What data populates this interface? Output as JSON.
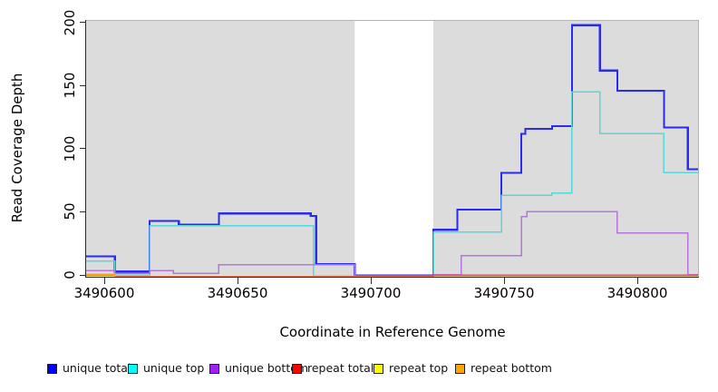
{
  "chart_data": {
    "type": "step-line",
    "title": "",
    "xlabel": "Coordinate in Reference Genome",
    "ylabel": "Read Coverage Depth",
    "x_ticks": [
      "3490600",
      "3490650",
      "3490700",
      "3490750",
      "3490800"
    ],
    "x_tick_values": [
      3490600,
      3490650,
      3490700,
      3490750,
      3490800
    ],
    "y_ticks": [
      "0",
      "50",
      "100",
      "150",
      "200"
    ],
    "y_tick_values": [
      0,
      50,
      100,
      150,
      200
    ],
    "xlim": [
      3490593.2,
      3490822.8
    ],
    "ylim": [
      0,
      203
    ],
    "grid": false,
    "legend_position": "bottom",
    "plot_bg": "#dcdcdc",
    "gap_region": {
      "from": 3490694,
      "to": 3490723.5,
      "fill": "#ffffff"
    },
    "series": [
      {
        "label": "unique total",
        "swatch": "#0000ff",
        "stroke": "#2a2af0",
        "points": [
          [
            3490593,
            15
          ],
          [
            3490604,
            3
          ],
          [
            3490617,
            43
          ],
          [
            3490628,
            40
          ],
          [
            3490643,
            49
          ],
          [
            3490677.5,
            47
          ],
          [
            3490679.5,
            9
          ],
          [
            3490694,
            0
          ],
          [
            3490723.5,
            36
          ],
          [
            3490732.5,
            52
          ],
          [
            3490749,
            81
          ],
          [
            3490756.5,
            112
          ],
          [
            3490758,
            116
          ],
          [
            3490768,
            118
          ],
          [
            3490775.5,
            198
          ],
          [
            3490786,
            162
          ],
          [
            3490792.5,
            146
          ],
          [
            3490810,
            117
          ],
          [
            3490819,
            84
          ],
          [
            3490823,
            84
          ]
        ]
      },
      {
        "label": "unique top",
        "swatch": "#00ffff",
        "stroke": "#58d6da",
        "points": [
          [
            3490593,
            12
          ],
          [
            3490604,
            1
          ],
          [
            3490617,
            40
          ],
          [
            3490678.5,
            0
          ],
          [
            3490723.5,
            35
          ],
          [
            3490749,
            64
          ],
          [
            3490768,
            66
          ],
          [
            3490775.5,
            146
          ],
          [
            3490786,
            113
          ],
          [
            3490810,
            82
          ],
          [
            3490823,
            82
          ]
        ]
      },
      {
        "label": "unique bottom",
        "swatch": "#a020f0",
        "stroke": "#b476dc",
        "points": [
          [
            3490593,
            4
          ],
          [
            3490604,
            2
          ],
          [
            3490617,
            4
          ],
          [
            3490626,
            2
          ],
          [
            3490643,
            9
          ],
          [
            3490694,
            0
          ],
          [
            3490723.5,
            1
          ],
          [
            3490734,
            16
          ],
          [
            3490756.5,
            47
          ],
          [
            3490758.5,
            51
          ],
          [
            3490792.5,
            34
          ],
          [
            3490819,
            1
          ],
          [
            3490823,
            1
          ]
        ]
      },
      {
        "label": "repeat total",
        "swatch": "#ff0000",
        "stroke": "#e0486e",
        "points": [
          [
            3490593,
            1
          ],
          [
            3490604,
            0
          ],
          [
            3490723.5,
            1
          ],
          [
            3490823,
            1
          ]
        ]
      },
      {
        "label": "repeat top",
        "swatch": "#ffff00",
        "stroke": "#ffee33",
        "points": [
          [
            3490593,
            0
          ],
          [
            3490823,
            0
          ]
        ]
      },
      {
        "label": "repeat bottom",
        "swatch": "#ffa500",
        "stroke": "#ffa520",
        "points": [
          [
            3490593,
            2
          ],
          [
            3490604,
            0
          ],
          [
            3490823,
            0
          ]
        ]
      }
    ]
  }
}
